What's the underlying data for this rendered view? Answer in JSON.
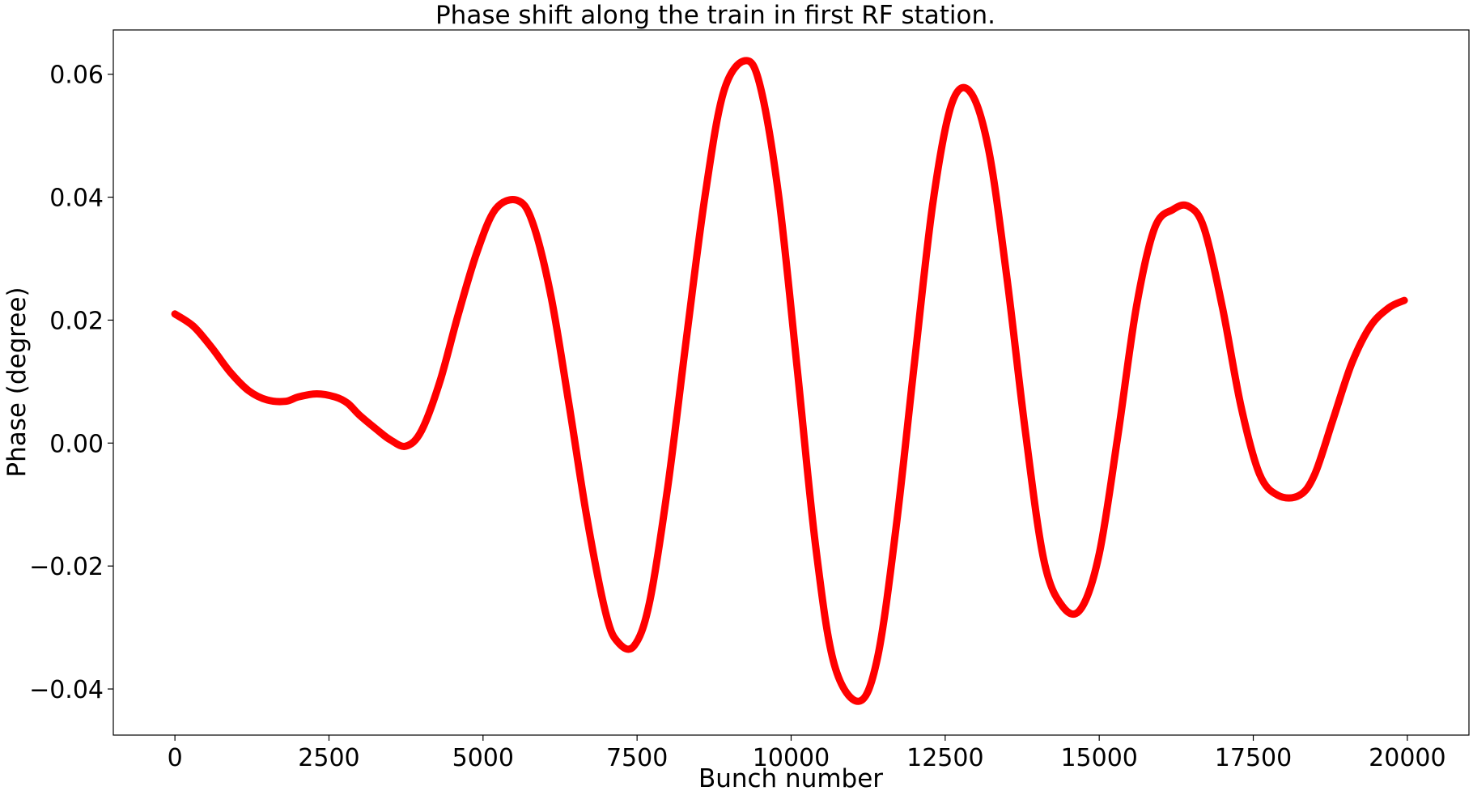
{
  "chart_data": {
    "type": "line",
    "title": "Phase shift along the train in first RF station.",
    "xlabel": "Bunch number",
    "ylabel": "Phase (degree)",
    "xlim": [
      -1000,
      21000
    ],
    "ylim": [
      -0.0475,
      0.0672
    ],
    "xticks": [
      0,
      2500,
      5000,
      7500,
      10000,
      12500,
      15000,
      17500,
      20000
    ],
    "xtick_labels": [
      "0",
      "2500",
      "5000",
      "7500",
      "10000",
      "12500",
      "15000",
      "17500",
      "20000"
    ],
    "yticks": [
      -0.04,
      -0.02,
      0.0,
      0.02,
      0.04,
      0.06
    ],
    "ytick_labels": [
      "−0.04",
      "−0.02",
      "0.00",
      "0.02",
      "0.04",
      "0.06"
    ],
    "grid": false,
    "series": [
      {
        "color": "#ff0000",
        "x": [
          0,
          300,
          600,
          900,
          1200,
          1500,
          1800,
          2000,
          2300,
          2600,
          2800,
          3000,
          3300,
          3500,
          3750,
          4000,
          4300,
          4600,
          4900,
          5200,
          5550,
          5800,
          6100,
          6400,
          6700,
          7000,
          7200,
          7450,
          7700,
          8000,
          8300,
          8600,
          8900,
          9250,
          9500,
          9800,
          10100,
          10400,
          10700,
          11100,
          11400,
          11700,
          12000,
          12300,
          12600,
          12900,
          13200,
          13500,
          13800,
          14100,
          14400,
          14700,
          15000,
          15300,
          15600,
          15900,
          16200,
          16450,
          16700,
          17000,
          17300,
          17600,
          17900,
          18250,
          18500,
          18800,
          19100,
          19400,
          19700,
          19950
        ],
        "y": [
          0.021,
          0.019,
          0.0155,
          0.0115,
          0.0085,
          0.007,
          0.0068,
          0.0075,
          0.008,
          0.0075,
          0.0065,
          0.0045,
          0.002,
          0.0005,
          -0.0005,
          0.002,
          0.01,
          0.021,
          0.031,
          0.038,
          0.0395,
          0.036,
          0.024,
          0.006,
          -0.013,
          -0.028,
          -0.0325,
          -0.033,
          -0.026,
          -0.007,
          0.017,
          0.04,
          0.057,
          0.0622,
          0.058,
          0.04,
          0.012,
          -0.017,
          -0.036,
          -0.042,
          -0.035,
          -0.014,
          0.013,
          0.039,
          0.055,
          0.0572,
          0.048,
          0.027,
          0.002,
          -0.019,
          -0.0265,
          -0.027,
          -0.018,
          0.001,
          0.022,
          0.035,
          0.038,
          0.0385,
          0.035,
          0.022,
          0.006,
          -0.005,
          -0.0085,
          -0.0085,
          -0.005,
          0.004,
          0.013,
          0.019,
          0.022,
          0.0232
        ]
      }
    ]
  }
}
